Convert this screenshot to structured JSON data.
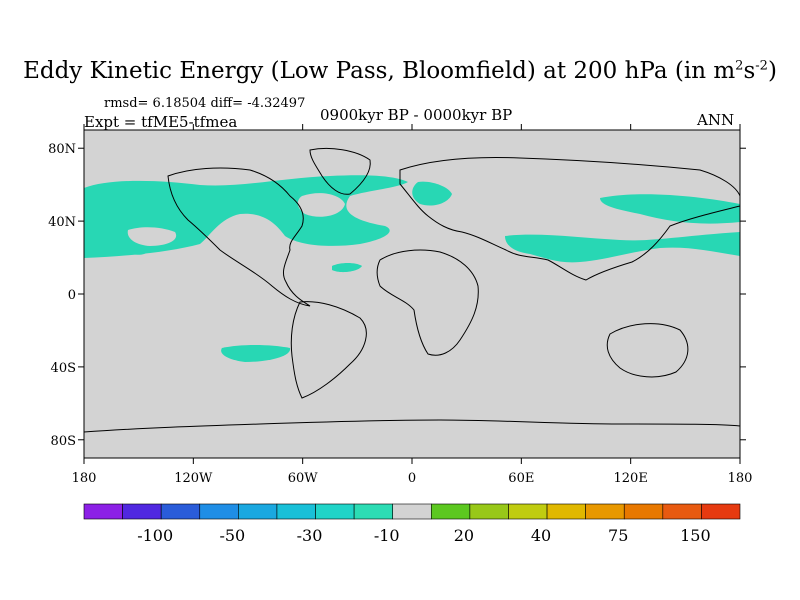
{
  "title": {
    "main": "Eddy Kinetic Energy (Low Pass, Bloomfield) at 200 hPa (in m",
    "sup1": "2",
    "mid": "s",
    "sup2": "-2",
    "end": ")"
  },
  "stats": "rmsd= 6.18504 diff= -4.32497",
  "experiment": "Expt = tfME5-tfmea",
  "period": "0900kyr BP - 0000kyr BP",
  "season": "ANN",
  "map": {
    "background_color": "#d3d3d3",
    "land_outline_color": "#000000",
    "anomaly_color": "#28d7b4",
    "lat_ticks": [
      "80N",
      "40N",
      "0",
      "40S",
      "80S"
    ],
    "lon_ticks": [
      "180",
      "120W",
      "60W",
      "0",
      "60E",
      "120E",
      "180"
    ],
    "lat_values": [
      80,
      40,
      0,
      -40,
      -80
    ],
    "lon_values": [
      -180,
      -120,
      -60,
      0,
      60,
      120,
      180
    ]
  },
  "colorbar": {
    "colors": [
      "#8c20e6",
      "#5028e0",
      "#2a5cd9",
      "#1f8ee6",
      "#1aa8e0",
      "#19c0d8",
      "#20d4c8",
      "#2cdcb4",
      "#d3d3d3",
      "#5cc820",
      "#98c818",
      "#c0cc10",
      "#e0b800",
      "#e89800",
      "#e87800",
      "#e85a10",
      "#e63a10"
    ],
    "labels": [
      "-100",
      "-50",
      "-30",
      "-10",
      "20",
      "40",
      "75",
      "150"
    ]
  }
}
